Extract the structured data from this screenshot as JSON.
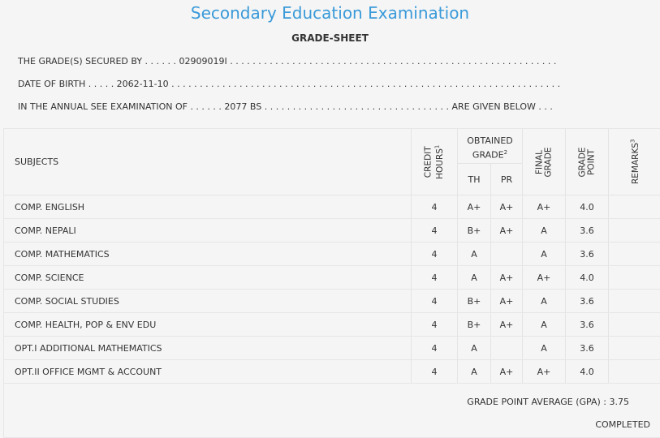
{
  "header": {
    "title": "Secondary Education Examination",
    "subtitle": "GRADE-SHEET"
  },
  "info": {
    "line1": "THE GRADE(S) SECURED BY . . . . . . 02909019I . . . . . . . . . . . . . . . . . . . . . . . . . . . . . . . . . . . . . . . . . . . . . . . . . . . . . . . . . .",
    "line2": "DATE OF BIRTH . . . . . 2062-11-10 . . . . . . . . . . . . . . . . . . . . . . . . . . . . . . . . . . . . . . . . . . . . . . . . . . . . . . . . . . . . . . . . . . . . .",
    "line3": "IN THE ANNUAL SEE EXAMINATION OF . . . . . . 2077 BS . . . . . . . . . . . . . . . . . . . . . . . . . . . . . . . . . ARE GIVEN BELOW . . ."
  },
  "table": {
    "col_subjects": "SUBJECTS",
    "col_credit_1": "CREDIT",
    "col_credit_2": "HOURS",
    "col_credit_sup": "1",
    "col_obtained_1": "OBTAINED",
    "col_obtained_2": "GRADE",
    "col_obtained_sup": "2",
    "col_th": "TH",
    "col_pr": "PR",
    "col_final_1": "FINAL",
    "col_final_2": "GRADE",
    "col_gp_1": "GRADE",
    "col_gp_2": "POINT",
    "col_remarks": "REMARKS",
    "col_remarks_sup": "3",
    "rows": [
      {
        "subject": "COMP. ENGLISH",
        "credit": "4",
        "th": "A+",
        "pr": "A+",
        "final": "A+",
        "gp": "4.0",
        "remarks": ""
      },
      {
        "subject": "COMP. NEPALI",
        "credit": "4",
        "th": "B+",
        "pr": "A+",
        "final": "A",
        "gp": "3.6",
        "remarks": ""
      },
      {
        "subject": "COMP. MATHEMATICS",
        "credit": "4",
        "th": "A",
        "pr": "",
        "final": "A",
        "gp": "3.6",
        "remarks": ""
      },
      {
        "subject": "COMP. SCIENCE",
        "credit": "4",
        "th": "A",
        "pr": "A+",
        "final": "A+",
        "gp": "4.0",
        "remarks": ""
      },
      {
        "subject": "COMP. SOCIAL STUDIES",
        "credit": "4",
        "th": "B+",
        "pr": "A+",
        "final": "A",
        "gp": "3.6",
        "remarks": ""
      },
      {
        "subject": "COMP. HEALTH, POP & ENV EDU",
        "credit": "4",
        "th": "B+",
        "pr": "A+",
        "final": "A",
        "gp": "3.6",
        "remarks": ""
      },
      {
        "subject": "OPT.I ADDITIONAL MATHEMATICS",
        "credit": "4",
        "th": "A",
        "pr": "",
        "final": "A",
        "gp": "3.6",
        "remarks": ""
      },
      {
        "subject": "OPT.II OFFICE MGMT & ACCOUNT",
        "credit": "4",
        "th": "A",
        "pr": "A+",
        "final": "A+",
        "gp": "4.0",
        "remarks": ""
      }
    ]
  },
  "footer": {
    "gpa": "GRADE POINT AVERAGE (GPA) : 3.75",
    "status": "COMPLETED"
  },
  "colors": {
    "title": "#3a9ad9",
    "background": "#f5f5f5",
    "text": "#333333"
  }
}
